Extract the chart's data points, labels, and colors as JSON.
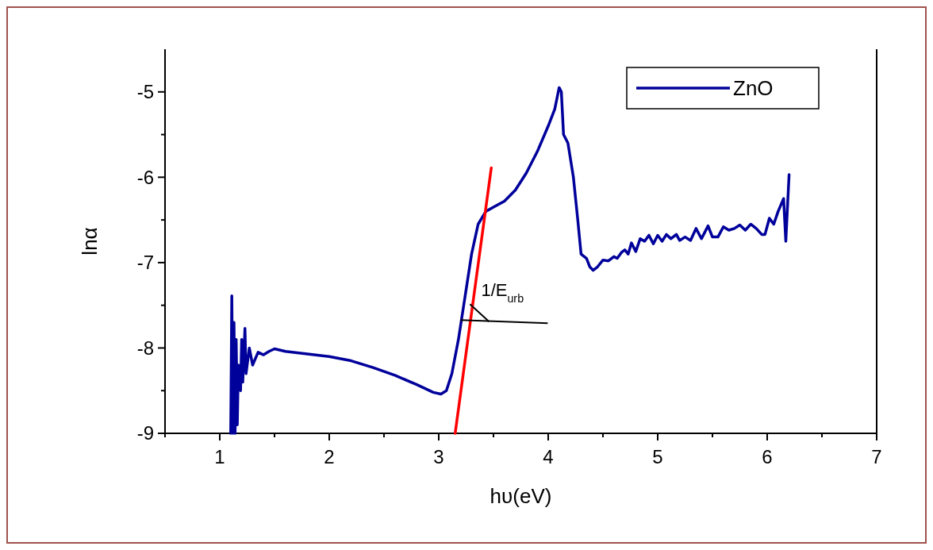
{
  "chart_data": {
    "type": "line",
    "xlabel": "hυ(eV)",
    "ylabel": "lnα",
    "xlim": [
      0.5,
      7
    ],
    "ylim": [
      -9,
      -4.5
    ],
    "xticks": [
      {
        "value": 0.5,
        "label": null
      },
      1,
      {
        "value": 1.5,
        "label": null
      },
      2,
      {
        "value": 2.5,
        "label": null
      },
      3,
      {
        "value": 3.5,
        "label": null
      },
      4,
      {
        "value": 4.5,
        "label": null
      },
      5,
      {
        "value": 5.5,
        "label": null
      },
      6,
      {
        "value": 6.5,
        "label": null
      },
      7
    ],
    "yticks": [
      -9,
      {
        "value": -8.5,
        "label": null
      },
      -8,
      {
        "value": -7.5,
        "label": null
      },
      -7,
      {
        "value": -6.5,
        "label": null
      },
      -6,
      {
        "value": -5.5,
        "label": null
      },
      -5
    ],
    "grid": false,
    "legend": "top right",
    "marker": "none",
    "line_style": "solid",
    "annotations": [
      {
        "text": "1/E$_{urb}$",
        "x": 3.3,
        "y": -7.3
      }
    ],
    "series": [
      {
        "name": "ZnO",
        "color": "#00009b",
        "x": [
          1.1,
          1.11,
          1.12,
          1.13,
          1.14,
          1.15,
          1.16,
          1.17,
          1.19,
          1.2,
          1.21,
          1.23,
          1.24,
          1.27,
          1.3,
          1.35,
          1.4,
          1.45,
          1.5,
          1.6,
          1.8,
          2.0,
          2.2,
          2.4,
          2.6,
          2.8,
          2.95,
          3.02,
          3.07,
          3.12,
          3.18,
          3.24,
          3.3,
          3.36,
          3.43,
          3.5,
          3.6,
          3.7,
          3.8,
          3.9,
          4.0,
          4.06,
          4.1,
          4.12,
          4.14,
          4.18,
          4.23,
          4.27,
          4.3,
          4.35,
          4.38,
          4.41,
          4.45,
          4.5,
          4.55,
          4.6,
          4.63,
          4.67,
          4.7,
          4.73,
          4.76,
          4.8,
          4.84,
          4.88,
          4.92,
          4.96,
          5.0,
          5.04,
          5.08,
          5.12,
          5.17,
          5.2,
          5.25,
          5.3,
          5.35,
          5.4,
          5.46,
          5.5,
          5.55,
          5.6,
          5.65,
          5.7,
          5.75,
          5.8,
          5.85,
          5.9,
          5.95,
          5.98,
          6.02,
          6.06,
          6.1,
          6.15,
          6.17,
          6.2
        ],
        "values": [
          -9,
          -7.39,
          -9,
          -7.7,
          -9,
          -7.9,
          -8.9,
          -8.2,
          -8.5,
          -7.9,
          -8.4,
          -7.77,
          -8.3,
          -8.0,
          -8.2,
          -8.05,
          -8.08,
          -8.04,
          -8.01,
          -8.04,
          -8.07,
          -8.1,
          -8.15,
          -8.23,
          -8.32,
          -8.43,
          -8.52,
          -8.54,
          -8.5,
          -8.3,
          -7.9,
          -7.4,
          -6.9,
          -6.55,
          -6.4,
          -6.35,
          -6.28,
          -6.15,
          -5.95,
          -5.7,
          -5.4,
          -5.2,
          -4.95,
          -5.0,
          -5.5,
          -5.6,
          -6.0,
          -6.5,
          -6.9,
          -6.95,
          -7.05,
          -7.09,
          -7.05,
          -6.97,
          -6.98,
          -6.93,
          -6.95,
          -6.88,
          -6.85,
          -6.9,
          -6.77,
          -6.87,
          -6.72,
          -6.75,
          -6.68,
          -6.78,
          -6.68,
          -6.75,
          -6.67,
          -6.72,
          -6.67,
          -6.74,
          -6.7,
          -6.74,
          -6.6,
          -6.72,
          -6.57,
          -6.7,
          -6.7,
          -6.58,
          -6.62,
          -6.6,
          -6.56,
          -6.62,
          -6.55,
          -6.6,
          -6.67,
          -6.67,
          -6.48,
          -6.55,
          -6.4,
          -6.25,
          -6.75,
          -5.97
        ]
      },
      {
        "type": "line",
        "color": "#ff0000",
        "x": [
          3.15,
          3.48
        ],
        "values": [
          -9,
          -5.89
        ]
      }
    ]
  }
}
